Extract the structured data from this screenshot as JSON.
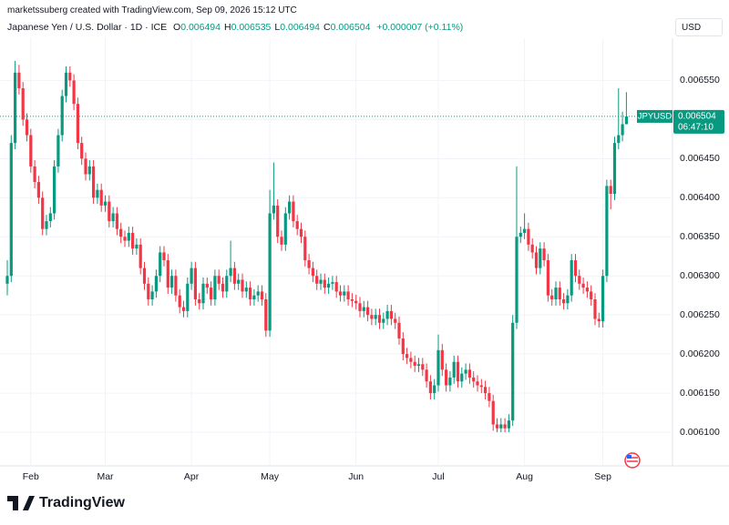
{
  "chart_data": {
    "type": "candlestick",
    "credit": "marketssuberg created with TradingView.com, Sep 09, 2026 15:12 UTC",
    "symbol": "Japanese Yen / U.S. Dollar · 1D · ICE",
    "ohlc_legend": [
      {
        "label": "O",
        "value": "0.006494"
      },
      {
        "label": "H",
        "value": "0.006535"
      },
      {
        "label": "L",
        "value": "0.006494"
      },
      {
        "label": "C",
        "value": "0.006504"
      }
    ],
    "change": "+0.000007 (+0.11%)",
    "currency": "USD",
    "price_tag": {
      "symbol": "JPYUSD",
      "price": "0.006504",
      "countdown": "06:47:10"
    },
    "logo": "TradingView",
    "up_color": "#089981",
    "down_color": "#f23645",
    "grid": true,
    "ylim": [
      0.006057,
      0.006604
    ],
    "yticks": [
      {
        "value": 0.0061,
        "label": "0.006100"
      },
      {
        "value": 0.00615,
        "label": "0.006150"
      },
      {
        "value": 0.0062,
        "label": "0.006200"
      },
      {
        "value": 0.00625,
        "label": "0.006250"
      },
      {
        "value": 0.0063,
        "label": "0.006300"
      },
      {
        "value": 0.00635,
        "label": "0.006350"
      },
      {
        "value": 0.0064,
        "label": "0.006400"
      },
      {
        "value": 0.00645,
        "label": "0.006450"
      },
      {
        "value": 0.0065,
        "label": "0.006500"
      },
      {
        "value": 0.00655,
        "label": "0.006550"
      }
    ],
    "categories": [
      null,
      null,
      null,
      null,
      null,
      null,
      "Feb",
      null,
      null,
      null,
      null,
      null,
      null,
      null,
      null,
      null,
      null,
      null,
      null,
      null,
      null,
      null,
      null,
      null,
      null,
      "Mar",
      null,
      null,
      null,
      null,
      null,
      null,
      null,
      null,
      null,
      null,
      null,
      null,
      null,
      null,
      null,
      null,
      null,
      null,
      null,
      null,
      null,
      "Apr",
      null,
      null,
      null,
      null,
      null,
      null,
      null,
      null,
      null,
      null,
      null,
      null,
      null,
      null,
      null,
      null,
      null,
      null,
      null,
      "May",
      null,
      null,
      null,
      null,
      null,
      null,
      null,
      null,
      null,
      null,
      null,
      null,
      null,
      null,
      null,
      null,
      null,
      null,
      null,
      null,
      null,
      "Jun",
      null,
      null,
      null,
      null,
      null,
      null,
      null,
      null,
      null,
      null,
      null,
      null,
      null,
      null,
      null,
      null,
      null,
      null,
      null,
      null,
      "Jul",
      null,
      null,
      null,
      null,
      null,
      null,
      null,
      null,
      null,
      null,
      null,
      null,
      null,
      null,
      null,
      null,
      null,
      null,
      null,
      null,
      null,
      "Aug",
      null,
      null,
      null,
      null,
      null,
      null,
      null,
      null,
      null,
      null,
      null,
      null,
      null,
      null,
      null,
      null,
      null,
      null,
      null,
      "Sep",
      null,
      null,
      null,
      null,
      null,
      null
    ],
    "open": [
      0.00629,
      0.0063,
      0.00647,
      0.00656,
      0.00654,
      0.0065,
      0.00648,
      0.00644,
      0.00642,
      0.0064,
      0.00636,
      0.00637,
      0.00638,
      0.00644,
      0.00648,
      0.00653,
      0.00656,
      0.00655,
      0.00652,
      0.00647,
      0.00645,
      0.00643,
      0.00644,
      0.0064,
      0.00641,
      0.00639,
      0.006395,
      0.00637,
      0.00638,
      0.00636,
      0.00635,
      0.006345,
      0.006355,
      0.006335,
      0.00634,
      0.00631,
      0.00629,
      0.00627,
      0.00628,
      0.0063,
      0.00633,
      0.00632,
      0.006285,
      0.0063,
      0.006275,
      0.00626,
      0.006255,
      0.00629,
      0.00631,
      0.00627,
      0.006265,
      0.00629,
      0.006285,
      0.00627,
      0.0063,
      0.00629,
      0.00628,
      0.0063,
      0.00631,
      0.00629,
      0.006295,
      0.00628,
      0.006285,
      0.00627,
      0.006275,
      0.00628,
      0.00627,
      0.00623,
      0.00638,
      0.00639,
      0.00635,
      0.00634,
      0.00638,
      0.006395,
      0.00637,
      0.00636,
      0.00635,
      0.00632,
      0.00631,
      0.0063,
      0.00629,
      0.006295,
      0.006285,
      0.00629,
      0.006292,
      0.00628,
      0.006275,
      0.00628,
      0.00627,
      0.006268,
      0.006265,
      0.006255,
      0.00626,
      0.00625,
      0.006245,
      0.00625,
      0.00624,
      0.006245,
      0.006255,
      0.006245,
      0.00624,
      0.00622,
      0.0062,
      0.006195,
      0.00619,
      0.006185,
      0.006187,
      0.00618,
      0.006165,
      0.00615,
      0.00616,
      0.006205,
      0.00618,
      0.00616,
      0.00617,
      0.00619,
      0.006165,
      0.006175,
      0.00618,
      0.00617,
      0.006165,
      0.00616,
      0.006158,
      0.00615,
      0.00614,
      0.00611,
      0.006105,
      0.00611,
      0.006105,
      0.006115,
      0.00624,
      0.00635,
      0.006355,
      0.00636,
      0.00634,
      0.00633,
      0.00631,
      0.006335,
      0.00632,
      0.006275,
      0.00627,
      0.006285,
      0.00627,
      0.006265,
      0.006275,
      0.00632,
      0.0063,
      0.00629,
      0.006285,
      0.00628,
      0.00627,
      0.006245,
      0.006242,
      0.0063,
      0.006415,
      0.006405,
      0.00647,
      0.00648,
      0.006494
    ],
    "close": [
      0.0063,
      0.00647,
      0.00656,
      0.00654,
      0.0065,
      0.00648,
      0.00644,
      0.00642,
      0.0064,
      0.00636,
      0.00637,
      0.00638,
      0.00644,
      0.00648,
      0.00653,
      0.00656,
      0.00655,
      0.00652,
      0.00647,
      0.00645,
      0.00643,
      0.00644,
      0.0064,
      0.00641,
      0.00639,
      0.006395,
      0.00637,
      0.00638,
      0.00636,
      0.00635,
      0.006345,
      0.006355,
      0.006335,
      0.00634,
      0.00631,
      0.00629,
      0.00627,
      0.00628,
      0.0063,
      0.00633,
      0.00632,
      0.006285,
      0.0063,
      0.006275,
      0.00626,
      0.006255,
      0.00629,
      0.00631,
      0.00627,
      0.006265,
      0.00629,
      0.006285,
      0.00627,
      0.0063,
      0.00629,
      0.00628,
      0.0063,
      0.00631,
      0.00629,
      0.006295,
      0.00628,
      0.006285,
      0.00627,
      0.006275,
      0.00628,
      0.00627,
      0.00623,
      0.00638,
      0.00639,
      0.00635,
      0.00634,
      0.00638,
      0.006395,
      0.00637,
      0.00636,
      0.00635,
      0.00632,
      0.00631,
      0.0063,
      0.00629,
      0.006295,
      0.006285,
      0.00629,
      0.006292,
      0.00628,
      0.006275,
      0.00628,
      0.00627,
      0.006268,
      0.006265,
      0.006255,
      0.00626,
      0.00625,
      0.006245,
      0.00625,
      0.00624,
      0.006245,
      0.006255,
      0.006245,
      0.00624,
      0.00622,
      0.0062,
      0.006195,
      0.00619,
      0.006185,
      0.006187,
      0.00618,
      0.006165,
      0.00615,
      0.00616,
      0.006205,
      0.00618,
      0.00616,
      0.00617,
      0.00619,
      0.006165,
      0.006175,
      0.00618,
      0.00617,
      0.006165,
      0.00616,
      0.006158,
      0.00615,
      0.00614,
      0.00611,
      0.006105,
      0.00611,
      0.006105,
      0.006115,
      0.00624,
      0.00635,
      0.006355,
      0.00636,
      0.00634,
      0.00633,
      0.00631,
      0.006335,
      0.00632,
      0.006275,
      0.00627,
      0.006285,
      0.00627,
      0.006265,
      0.006275,
      0.00632,
      0.0063,
      0.00629,
      0.006285,
      0.00628,
      0.00627,
      0.006245,
      0.006242,
      0.0063,
      0.006415,
      0.006405,
      0.00647,
      0.00648,
      0.006494,
      0.006504
    ],
    "high": [
      0.00632,
      0.00648,
      0.006575,
      0.00657,
      0.006548,
      0.006508,
      0.006488,
      0.006448,
      0.006428,
      0.006408,
      0.006378,
      0.006388,
      0.006448,
      0.006488,
      0.006538,
      0.006568,
      0.006568,
      0.006558,
      0.006528,
      0.006478,
      0.006458,
      0.006448,
      0.006448,
      0.006418,
      0.006418,
      0.006403,
      0.006403,
      0.006388,
      0.006388,
      0.006368,
      0.006358,
      0.006363,
      0.006363,
      0.006348,
      0.006348,
      0.006318,
      0.006298,
      0.006288,
      0.006308,
      0.006338,
      0.006338,
      0.006328,
      0.006308,
      0.006308,
      0.006283,
      0.006268,
      0.006298,
      0.006318,
      0.006318,
      0.006278,
      0.006298,
      0.006298,
      0.006293,
      0.006308,
      0.006308,
      0.006298,
      0.006308,
      0.006345,
      0.006318,
      0.006303,
      0.006303,
      0.006293,
      0.006293,
      0.006283,
      0.006288,
      0.006288,
      0.006278,
      0.00641,
      0.006445,
      0.006398,
      0.006358,
      0.006388,
      0.006403,
      0.006403,
      0.006378,
      0.006368,
      0.006358,
      0.006328,
      0.006318,
      0.006308,
      0.006303,
      0.006303,
      0.006298,
      0.0063,
      0.0063,
      0.006288,
      0.006288,
      0.006288,
      0.006278,
      0.006276,
      0.006273,
      0.006268,
      0.006268,
      0.006258,
      0.006258,
      0.006258,
      0.006253,
      0.006263,
      0.006263,
      0.006253,
      0.006248,
      0.006228,
      0.006208,
      0.006203,
      0.006198,
      0.006195,
      0.006195,
      0.006188,
      0.006173,
      0.006168,
      0.006225,
      0.006213,
      0.006188,
      0.006178,
      0.006198,
      0.006198,
      0.006183,
      0.006188,
      0.006188,
      0.006178,
      0.006173,
      0.006168,
      0.006166,
      0.006158,
      0.006148,
      0.006118,
      0.006118,
      0.006118,
      0.006123,
      0.00625,
      0.00644,
      0.006363,
      0.00638,
      0.006368,
      0.006348,
      0.006338,
      0.006343,
      0.006343,
      0.006328,
      0.006283,
      0.006293,
      0.006293,
      0.006278,
      0.006283,
      0.006328,
      0.006328,
      0.006308,
      0.006298,
      0.006293,
      0.006288,
      0.006278,
      0.006253,
      0.006308,
      0.006423,
      0.006423,
      0.006478,
      0.00654,
      0.00651,
      0.006535
    ],
    "low": [
      0.006275,
      0.006292,
      0.006462,
      0.006532,
      0.006492,
      0.006472,
      0.006432,
      0.006412,
      0.006392,
      0.006352,
      0.006352,
      0.006362,
      0.006372,
      0.006432,
      0.006472,
      0.006522,
      0.006542,
      0.006512,
      0.006462,
      0.006442,
      0.006422,
      0.006422,
      0.006392,
      0.006392,
      0.006382,
      0.006382,
      0.006362,
      0.006362,
      0.006352,
      0.006342,
      0.006337,
      0.006337,
      0.006327,
      0.006327,
      0.006302,
      0.006282,
      0.006262,
      0.006262,
      0.006272,
      0.006292,
      0.006312,
      0.006277,
      0.006277,
      0.006267,
      0.006252,
      0.006247,
      0.006247,
      0.006282,
      0.006262,
      0.006257,
      0.006257,
      0.006277,
      0.006262,
      0.006262,
      0.006282,
      0.006272,
      0.006272,
      0.006292,
      0.006282,
      0.006282,
      0.006272,
      0.006272,
      0.006262,
      0.006262,
      0.006267,
      0.006262,
      0.006222,
      0.006222,
      0.006372,
      0.006342,
      0.006332,
      0.006332,
      0.006372,
      0.006362,
      0.006352,
      0.006342,
      0.006312,
      0.006302,
      0.006292,
      0.006282,
      0.006282,
      0.006277,
      0.006277,
      0.006282,
      0.006272,
      0.006267,
      0.006267,
      0.006262,
      0.00626,
      0.006257,
      0.006247,
      0.006247,
      0.006242,
      0.006237,
      0.006237,
      0.006232,
      0.006232,
      0.006237,
      0.006237,
      0.006232,
      0.006212,
      0.006192,
      0.006187,
      0.006182,
      0.006177,
      0.006177,
      0.006172,
      0.006157,
      0.006142,
      0.006142,
      0.006152,
      0.006172,
      0.006152,
      0.006152,
      0.006162,
      0.006157,
      0.006157,
      0.006167,
      0.006162,
      0.006157,
      0.006152,
      0.00615,
      0.006142,
      0.006132,
      0.006102,
      0.0061,
      0.0061,
      0.0061,
      0.0061,
      0.006108,
      0.006232,
      0.006342,
      0.006347,
      0.006332,
      0.006322,
      0.006302,
      0.006302,
      0.006312,
      0.006267,
      0.006262,
      0.006262,
      0.006262,
      0.006257,
      0.006257,
      0.006267,
      0.006292,
      0.006282,
      0.006277,
      0.006272,
      0.006262,
      0.006237,
      0.006234,
      0.006234,
      0.006292,
      0.006385,
      0.006397,
      0.006462,
      0.006472,
      0.006494
    ]
  }
}
